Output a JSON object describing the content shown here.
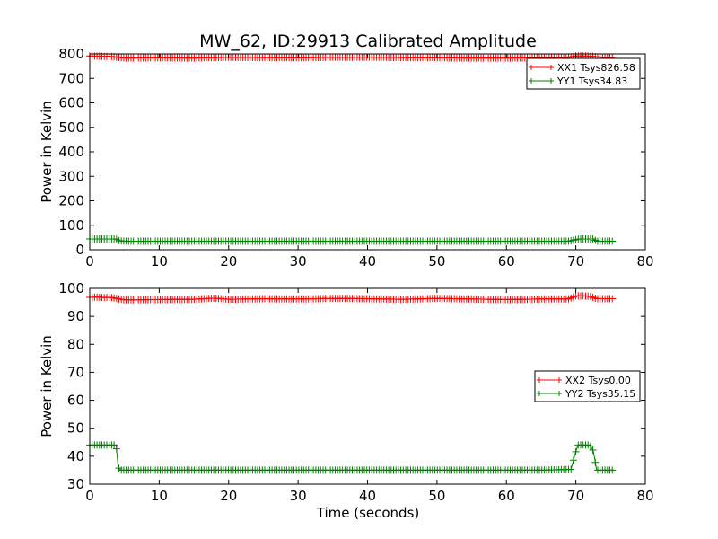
{
  "chart_data": [
    {
      "type": "line",
      "title": "MW_62, ID:29913 Calibrated Amplitude",
      "xlabel": "",
      "ylabel": "Power in Kelvin",
      "xlim": [
        0,
        80
      ],
      "ylim": [
        0,
        800
      ],
      "xticks": [
        0,
        10,
        20,
        30,
        40,
        50,
        60,
        70,
        80
      ],
      "yticks": [
        0,
        100,
        200,
        300,
        400,
        500,
        600,
        700,
        800
      ],
      "grid": false,
      "legend_position": "top-right",
      "marker": "plus",
      "series": [
        {
          "name": "XX1 Tsys826.58",
          "color": "#ff0000",
          "x": [
            0,
            1,
            2,
            3,
            4,
            5,
            10,
            15,
            20,
            25,
            30,
            35,
            40,
            45,
            50,
            55,
            60,
            65,
            69,
            70,
            71,
            72,
            73,
            74,
            75.5
          ],
          "y": [
            792,
            791,
            790,
            790,
            786,
            783,
            784,
            783,
            786,
            785,
            784,
            786,
            787,
            785,
            784,
            783,
            783,
            784,
            786,
            792,
            792,
            791,
            788,
            786,
            786
          ]
        },
        {
          "name": "YY1 Tsys34.83",
          "color": "#008000",
          "x": [
            0,
            1,
            2,
            3,
            3.8,
            4.3,
            5,
            10,
            20,
            30,
            40,
            50,
            60,
            65,
            69,
            69.8,
            70.5,
            71.5,
            72.5,
            73,
            74,
            75.5
          ],
          "y": [
            44,
            44,
            44,
            44,
            44,
            36,
            35,
            35,
            35,
            35,
            35,
            35,
            35,
            35,
            35,
            40,
            44,
            44,
            44,
            35,
            35,
            35
          ]
        }
      ]
    },
    {
      "type": "line",
      "title": "",
      "xlabel": "Time (seconds)",
      "ylabel": "Power in Kelvin",
      "xlim": [
        0,
        80
      ],
      "ylim": [
        30,
        100
      ],
      "xticks": [
        0,
        10,
        20,
        30,
        40,
        50,
        60,
        70,
        80
      ],
      "yticks": [
        30,
        40,
        50,
        60,
        70,
        80,
        90,
        100
      ],
      "grid": false,
      "legend_position": "center-right",
      "marker": "plus",
      "series": [
        {
          "name": "XX2 Tsys0.00",
          "color": "#ff0000",
          "x": [
            0,
            1,
            2,
            3,
            4,
            5,
            10,
            15,
            18,
            20,
            25,
            30,
            35,
            40,
            45,
            50,
            55,
            60,
            65,
            69,
            70,
            71,
            72,
            73,
            74,
            75.5
          ],
          "y": [
            96.8,
            96.9,
            96.7,
            96.8,
            96.3,
            95.9,
            96.0,
            96.1,
            96.5,
            96.1,
            96.3,
            96.2,
            96.4,
            96.3,
            96.1,
            96.4,
            96.2,
            96.0,
            96.2,
            96.2,
            97.3,
            97.3,
            97.2,
            96.3,
            96.3,
            96.3
          ]
        },
        {
          "name": "YY2 Tsys35.15",
          "color": "#008000",
          "x": [
            0,
            1,
            2,
            3,
            3.8,
            4.1,
            4.5,
            5,
            10,
            20,
            30,
            40,
            50,
            60,
            65,
            69.3,
            69.8,
            70.3,
            71,
            72,
            72.5,
            73,
            74,
            75.5
          ],
          "y": [
            44.0,
            44.0,
            44.0,
            44.0,
            44.0,
            36.0,
            35.0,
            35.0,
            35.0,
            35.0,
            35.0,
            35.0,
            35.0,
            35.0,
            35.0,
            35.3,
            40.0,
            44.0,
            44.0,
            44.0,
            42.0,
            35.0,
            35.0,
            35.0
          ]
        }
      ]
    }
  ]
}
